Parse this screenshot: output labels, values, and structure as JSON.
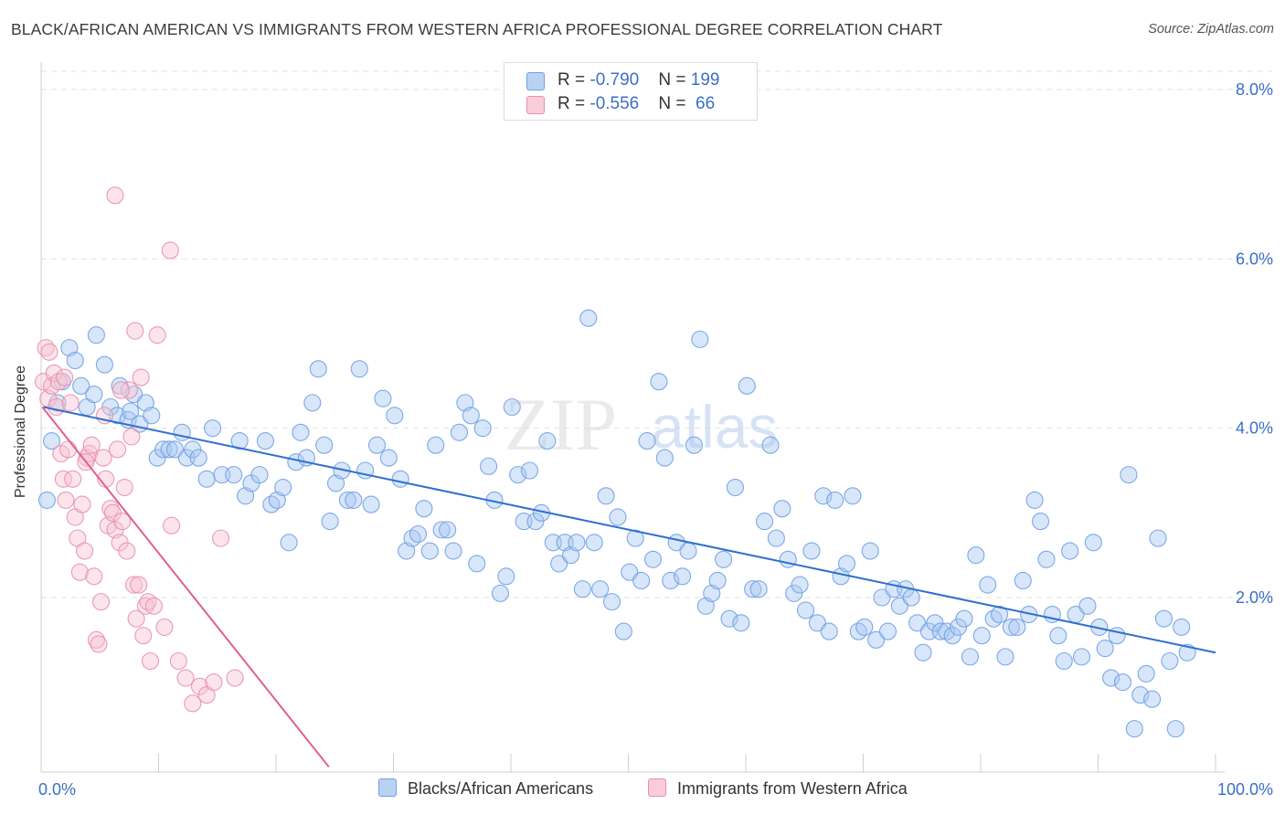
{
  "title": "BLACK/AFRICAN AMERICAN VS IMMIGRANTS FROM WESTERN AFRICA PROFESSIONAL DEGREE CORRELATION CHART",
  "source": "Source: ZipAtlas.com",
  "watermark": {
    "zip": "ZIP",
    "atlas": "atlas"
  },
  "legend": {
    "series1": {
      "r_label": "R = ",
      "r_value": "-0.790",
      "n_label": "N = ",
      "n_value": "199"
    },
    "series2": {
      "r_label": "R = ",
      "r_value": "-0.556",
      "n_label": "N = ",
      "n_value": " 66"
    }
  },
  "chart_data": {
    "type": "scatter",
    "title": "BLACK/AFRICAN AMERICAN VS IMMIGRANTS FROM WESTERN AFRICA PROFESSIONAL DEGREE CORRELATION CHART",
    "xlabel": "",
    "ylabel": "Professional Degree",
    "xlim": [
      0,
      100
    ],
    "ylim": [
      0,
      8.2
    ],
    "x_tick_labels": [
      "0.0%",
      "100.0%"
    ],
    "y_ticks": [
      2,
      4,
      6,
      8
    ],
    "y_tick_labels": [
      "2.0%",
      "4.0%",
      "6.0%",
      "8.0%"
    ],
    "grid": true,
    "series": [
      {
        "name": "Blacks/African Americans",
        "color": "#6fa0e6",
        "fill": "#a9c8f2",
        "r": -0.79,
        "n": 199,
        "trend": {
          "x0": 0.2,
          "y0": 4.25,
          "x1": 100,
          "y1": 1.35
        },
        "points": [
          [
            0.5,
            3.15
          ],
          [
            0.9,
            3.85
          ],
          [
            1.4,
            4.3
          ],
          [
            1.8,
            4.55
          ],
          [
            2.4,
            4.95
          ],
          [
            2.9,
            4.8
          ],
          [
            3.4,
            4.5
          ],
          [
            3.9,
            4.25
          ],
          [
            4.5,
            4.4
          ],
          [
            4.7,
            5.1
          ],
          [
            5.4,
            4.75
          ],
          [
            5.9,
            4.25
          ],
          [
            6.5,
            4.15
          ],
          [
            6.7,
            4.5
          ],
          [
            7.4,
            4.1
          ],
          [
            7.6,
            4.2
          ],
          [
            7.9,
            4.4
          ],
          [
            8.4,
            4.05
          ],
          [
            8.9,
            4.3
          ],
          [
            9.4,
            4.15
          ],
          [
            9.9,
            3.65
          ],
          [
            10.4,
            3.75
          ],
          [
            10.9,
            3.75
          ],
          [
            11.4,
            3.75
          ],
          [
            12.0,
            3.95
          ],
          [
            12.4,
            3.65
          ],
          [
            12.9,
            3.75
          ],
          [
            13.4,
            3.65
          ],
          [
            14.1,
            3.4
          ],
          [
            14.6,
            4.0
          ],
          [
            15.4,
            3.45
          ],
          [
            16.4,
            3.45
          ],
          [
            16.9,
            3.85
          ],
          [
            17.4,
            3.2
          ],
          [
            17.9,
            3.35
          ],
          [
            18.6,
            3.45
          ],
          [
            19.1,
            3.85
          ],
          [
            19.6,
            3.1
          ],
          [
            20.1,
            3.15
          ],
          [
            20.6,
            3.3
          ],
          [
            21.1,
            2.65
          ],
          [
            21.7,
            3.6
          ],
          [
            22.1,
            3.95
          ],
          [
            22.6,
            3.65
          ],
          [
            23.1,
            4.3
          ],
          [
            23.6,
            4.7
          ],
          [
            24.1,
            3.8
          ],
          [
            24.6,
            2.9
          ],
          [
            25.1,
            3.35
          ],
          [
            25.6,
            3.5
          ],
          [
            26.1,
            3.15
          ],
          [
            26.6,
            3.15
          ],
          [
            27.1,
            4.7
          ],
          [
            27.6,
            3.5
          ],
          [
            28.1,
            3.1
          ],
          [
            28.6,
            3.8
          ],
          [
            29.1,
            4.35
          ],
          [
            29.6,
            3.65
          ],
          [
            30.1,
            4.15
          ],
          [
            30.6,
            3.4
          ],
          [
            31.1,
            2.55
          ],
          [
            31.6,
            2.7
          ],
          [
            32.1,
            2.75
          ],
          [
            32.6,
            3.05
          ],
          [
            33.1,
            2.55
          ],
          [
            33.6,
            3.8
          ],
          [
            34.1,
            2.8
          ],
          [
            34.6,
            2.8
          ],
          [
            35.1,
            2.55
          ],
          [
            35.6,
            3.95
          ],
          [
            36.1,
            4.3
          ],
          [
            36.6,
            4.15
          ],
          [
            37.1,
            2.4
          ],
          [
            37.6,
            4.0
          ],
          [
            38.1,
            3.55
          ],
          [
            38.6,
            3.15
          ],
          [
            39.1,
            2.05
          ],
          [
            39.6,
            2.25
          ],
          [
            40.1,
            4.25
          ],
          [
            40.6,
            3.45
          ],
          [
            41.1,
            2.9
          ],
          [
            41.6,
            3.5
          ],
          [
            42.1,
            2.9
          ],
          [
            42.6,
            3.0
          ],
          [
            43.1,
            3.85
          ],
          [
            43.6,
            2.65
          ],
          [
            44.1,
            2.4
          ],
          [
            44.6,
            2.65
          ],
          [
            45.1,
            2.5
          ],
          [
            45.6,
            2.65
          ],
          [
            46.1,
            2.1
          ],
          [
            46.6,
            5.3
          ],
          [
            47.1,
            2.65
          ],
          [
            47.6,
            2.1
          ],
          [
            48.1,
            3.2
          ],
          [
            48.6,
            1.95
          ],
          [
            49.1,
            2.95
          ],
          [
            49.6,
            1.6
          ],
          [
            50.1,
            2.3
          ],
          [
            50.6,
            2.7
          ],
          [
            51.1,
            2.2
          ],
          [
            51.6,
            3.85
          ],
          [
            52.1,
            2.45
          ],
          [
            52.6,
            4.55
          ],
          [
            53.1,
            3.65
          ],
          [
            53.6,
            2.2
          ],
          [
            54.1,
            2.65
          ],
          [
            54.6,
            2.25
          ],
          [
            55.1,
            2.55
          ],
          [
            55.6,
            3.8
          ],
          [
            56.1,
            5.05
          ],
          [
            56.6,
            1.9
          ],
          [
            57.1,
            2.05
          ],
          [
            57.6,
            2.2
          ],
          [
            58.1,
            2.45
          ],
          [
            58.6,
            1.75
          ],
          [
            59.1,
            3.3
          ],
          [
            59.6,
            1.7
          ],
          [
            60.1,
            4.5
          ],
          [
            60.6,
            2.1
          ],
          [
            61.1,
            2.1
          ],
          [
            61.6,
            2.9
          ],
          [
            62.1,
            3.8
          ],
          [
            62.6,
            2.7
          ],
          [
            63.1,
            3.05
          ],
          [
            63.6,
            2.45
          ],
          [
            64.1,
            2.05
          ],
          [
            64.6,
            2.15
          ],
          [
            65.1,
            1.85
          ],
          [
            65.6,
            2.55
          ],
          [
            66.1,
            1.7
          ],
          [
            66.6,
            3.2
          ],
          [
            67.1,
            1.6
          ],
          [
            67.6,
            3.15
          ],
          [
            68.1,
            2.25
          ],
          [
            68.6,
            2.4
          ],
          [
            69.1,
            3.2
          ],
          [
            69.6,
            1.6
          ],
          [
            70.1,
            1.65
          ],
          [
            70.6,
            2.55
          ],
          [
            71.1,
            1.5
          ],
          [
            71.6,
            2.0
          ],
          [
            72.1,
            1.6
          ],
          [
            72.6,
            2.1
          ],
          [
            73.1,
            1.9
          ],
          [
            73.6,
            2.1
          ],
          [
            74.1,
            2.0
          ],
          [
            74.6,
            1.7
          ],
          [
            75.1,
            1.35
          ],
          [
            75.6,
            1.6
          ],
          [
            76.1,
            1.7
          ],
          [
            76.6,
            1.6
          ],
          [
            77.1,
            1.6
          ],
          [
            77.6,
            1.55
          ],
          [
            78.1,
            1.65
          ],
          [
            78.6,
            1.75
          ],
          [
            79.1,
            1.3
          ],
          [
            79.6,
            2.5
          ],
          [
            80.1,
            1.55
          ],
          [
            80.6,
            2.15
          ],
          [
            81.1,
            1.75
          ],
          [
            81.6,
            1.8
          ],
          [
            82.1,
            1.3
          ],
          [
            82.6,
            1.65
          ],
          [
            83.1,
            1.65
          ],
          [
            83.6,
            2.2
          ],
          [
            84.1,
            1.8
          ],
          [
            84.6,
            3.15
          ],
          [
            85.1,
            2.9
          ],
          [
            85.6,
            2.45
          ],
          [
            86.1,
            1.8
          ],
          [
            86.6,
            1.55
          ],
          [
            87.1,
            1.25
          ],
          [
            87.6,
            2.55
          ],
          [
            88.1,
            1.8
          ],
          [
            88.6,
            1.3
          ],
          [
            89.1,
            1.9
          ],
          [
            89.6,
            2.65
          ],
          [
            90.1,
            1.65
          ],
          [
            90.6,
            1.4
          ],
          [
            91.1,
            1.05
          ],
          [
            91.6,
            1.55
          ],
          [
            92.1,
            1.0
          ],
          [
            92.6,
            3.45
          ],
          [
            93.1,
            0.45
          ],
          [
            93.6,
            0.85
          ],
          [
            94.1,
            1.1
          ],
          [
            94.6,
            0.8
          ],
          [
            95.1,
            2.7
          ],
          [
            95.6,
            1.75
          ],
          [
            96.1,
            1.25
          ],
          [
            96.6,
            0.45
          ],
          [
            97.1,
            1.65
          ],
          [
            97.6,
            1.35
          ]
        ]
      },
      {
        "name": "Immigrants from Western Africa",
        "color": "#e890ac",
        "fill": "#f7c3d3",
        "r": -0.556,
        "n": 66,
        "trend": {
          "x0": 0.1,
          "y0": 4.25,
          "x1": 24.5,
          "y1": 0.0
        },
        "points": [
          [
            0.2,
            4.55
          ],
          [
            0.4,
            4.95
          ],
          [
            0.6,
            4.35
          ],
          [
            0.7,
            4.9
          ],
          [
            0.9,
            4.5
          ],
          [
            1.1,
            4.65
          ],
          [
            1.3,
            4.25
          ],
          [
            1.5,
            4.55
          ],
          [
            1.7,
            3.7
          ],
          [
            1.9,
            3.4
          ],
          [
            2.1,
            3.15
          ],
          [
            2.3,
            3.75
          ],
          [
            2.5,
            4.3
          ],
          [
            2.7,
            3.4
          ],
          [
            2.9,
            2.95
          ],
          [
            3.1,
            2.7
          ],
          [
            3.3,
            2.3
          ],
          [
            3.5,
            3.1
          ],
          [
            3.7,
            2.55
          ],
          [
            3.9,
            3.65
          ],
          [
            4.1,
            3.7
          ],
          [
            4.3,
            3.8
          ],
          [
            4.5,
            2.25
          ],
          [
            4.7,
            1.5
          ],
          [
            4.9,
            1.45
          ],
          [
            5.1,
            1.95
          ],
          [
            5.3,
            3.65
          ],
          [
            5.5,
            3.4
          ],
          [
            5.7,
            2.85
          ],
          [
            5.9,
            3.05
          ],
          [
            6.1,
            3.0
          ],
          [
            6.3,
            2.8
          ],
          [
            6.5,
            3.75
          ],
          [
            6.7,
            2.65
          ],
          [
            6.9,
            2.9
          ],
          [
            7.1,
            3.3
          ],
          [
            7.3,
            2.55
          ],
          [
            7.5,
            4.45
          ],
          [
            7.7,
            3.9
          ],
          [
            7.9,
            2.15
          ],
          [
            8.1,
            1.75
          ],
          [
            8.3,
            2.15
          ],
          [
            8.5,
            4.6
          ],
          [
            8.7,
            1.55
          ],
          [
            8.9,
            1.9
          ],
          [
            9.1,
            1.95
          ],
          [
            9.3,
            1.25
          ],
          [
            9.9,
            5.1
          ],
          [
            10.5,
            1.65
          ],
          [
            11.1,
            2.85
          ],
          [
            11.7,
            1.25
          ],
          [
            12.3,
            1.05
          ],
          [
            12.9,
            0.75
          ],
          [
            13.5,
            0.95
          ],
          [
            14.1,
            0.85
          ],
          [
            14.7,
            1.0
          ],
          [
            15.3,
            2.7
          ],
          [
            16.5,
            1.05
          ],
          [
            6.3,
            6.75
          ],
          [
            11.0,
            6.1
          ],
          [
            8.0,
            5.15
          ],
          [
            9.6,
            1.9
          ],
          [
            5.4,
            4.15
          ],
          [
            6.8,
            4.45
          ],
          [
            2.0,
            4.6
          ],
          [
            3.8,
            3.6
          ]
        ]
      }
    ]
  }
}
